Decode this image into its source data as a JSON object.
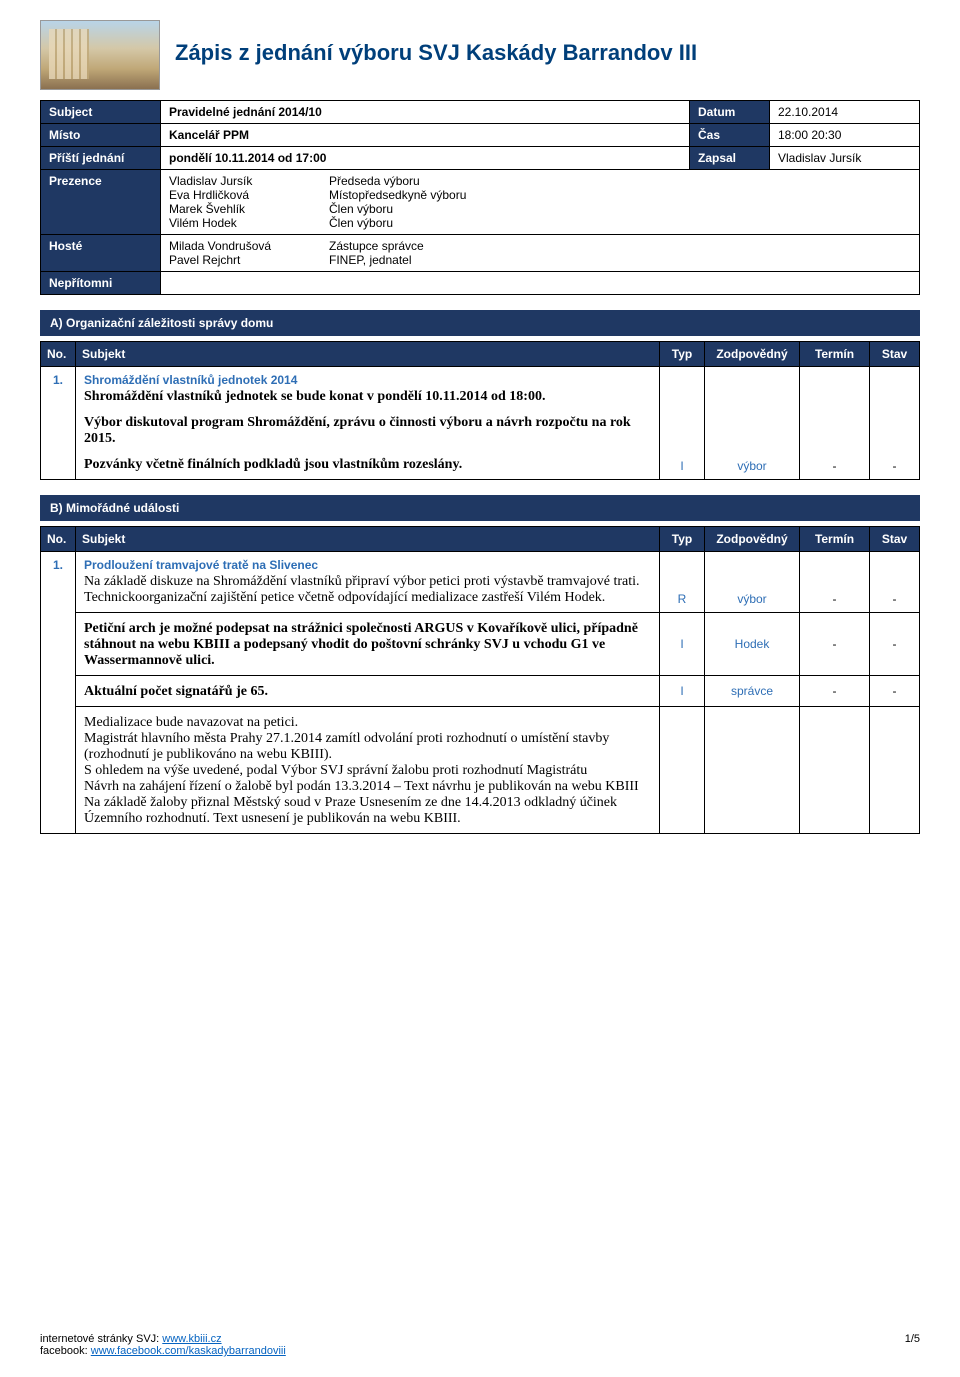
{
  "document": {
    "title": "Zápis z jednání výboru SVJ Kaskády Barrandov III",
    "title_color": "#003f7a",
    "header_bg": "#1f3863",
    "link_color": "#0563c1",
    "accent_color": "#2e6eb5"
  },
  "meta": {
    "rows": [
      {
        "label1": "Subject",
        "val1": "Pravidelné jednání 2014/10",
        "label2": "Datum",
        "val2": "22.10.2014"
      },
      {
        "label1": "Místo",
        "val1": "Kancelář PPM",
        "label2": "Čas",
        "val2": "18:00 20:30"
      },
      {
        "label1": "Příští jednání",
        "val1": "pondělí 10.11.2014 od 17:00",
        "label2": "Zapsal",
        "val2": "Vladislav Jursík"
      }
    ],
    "prezence": {
      "label": "Prezence",
      "rows": [
        {
          "name": "Vladislav Jursík",
          "role": "Předseda výboru"
        },
        {
          "name": "Eva Hrdličková",
          "role": "Místopředsedkyně výboru"
        },
        {
          "name": "Marek Švehlík",
          "role": "Člen výboru"
        },
        {
          "name": "Vilém Hodek",
          "role": "Člen výboru"
        }
      ]
    },
    "hoste": {
      "label": "Hosté",
      "rows": [
        {
          "name": "Milada Vondrušová",
          "role": "Zástupce správce"
        },
        {
          "name": "Pavel Rejchrt",
          "role": "FINEP, jednatel"
        }
      ]
    },
    "nepritomni": {
      "label": "Nepřítomni",
      "value": ""
    }
  },
  "columns": {
    "no": "No.",
    "subjekt": "Subjekt",
    "typ": "Typ",
    "zodp": "Zodpovědný",
    "termin": "Termín",
    "stav": "Stav"
  },
  "sections": [
    {
      "title": "A) Organizační záležitosti správy domu",
      "items": [
        {
          "no": "1.",
          "title": "Shromáždění vlastníků jednotek 2014",
          "paragraphs": [
            {
              "text": "Shromáždění vlastníků jednotek se bude konat v pondělí 10.11.2014 od 18:00.",
              "bold": true
            },
            {
              "text": "Výbor diskutoval program Shromáždění, zprávu o činnosti výboru a návrh rozpočtu na rok 2015.",
              "bold": true
            },
            {
              "text": "Pozvánky včetně finálních podkladů jsou vlastníkům rozeslány.",
              "bold": true
            }
          ],
          "rows": [
            {
              "typ": "I",
              "zodp": "výbor",
              "termin": "-",
              "stav": "-"
            }
          ]
        }
      ]
    },
    {
      "title": "B) Mimořádné události",
      "items": [
        {
          "no": "1.",
          "title": "Prodloužení tramvajové tratě na Slivenec",
          "paragraphs": [
            {
              "text": "Na základě diskuze na Shromáždění vlastníků připraví výbor petici proti výstavbě tramvajové trati.\nTechnickoorganizační zajištění petice včetně odpovídající medializace zastřeší Vilém Hodek.",
              "bold": false
            }
          ],
          "rows": [
            {
              "typ": "R",
              "zodp": "výbor",
              "termin": "-",
              "stav": "-"
            }
          ],
          "subblocks": [
            {
              "paragraphs": [
                {
                  "text": "Petiční arch je možné podepsat na strážnici společnosti ARGUS v Kovaříkově ulici, případně stáhnout na webu KBIII a podepsaný vhodit do poštovní schránky SVJ u vchodu G1 ve Wassermannově ulici.",
                  "bold": true
                }
              ],
              "row": {
                "typ": "I",
                "zodp": "Hodek",
                "termin": "-",
                "stav": "-"
              }
            },
            {
              "paragraphs": [
                {
                  "text": "Aktuální počet signatářů je 65.",
                  "bold": true
                }
              ],
              "row": {
                "typ": "I",
                "zodp": "správce",
                "termin": "-",
                "stav": "-"
              }
            },
            {
              "paragraphs": [
                {
                  "text": "Medializace bude navazovat na petici.\nMagistrát hlavního města Prahy 27.1.2014 zamítl odvolání proti rozhodnutí o umístění stavby (rozhodnutí je publikováno na webu KBIII).\nS ohledem na výše uvedené, podal Výbor SVJ správní žalobu proti rozhodnutí Magistrátu\nNávrh na zahájení řízení o žalobě byl podán 13.3.2014 – Text návrhu je publikován na webu KBIII\nNa základě žaloby přiznal Městský soud v Praze Usnesením ze dne 14.4.2013 odkladný účinek Územního rozhodnutí. Text usnesení je publikován na webu KBIII.",
                  "bold": false
                }
              ],
              "row": null
            }
          ]
        }
      ]
    }
  ],
  "footer": {
    "line1_prefix": "internetové stránky SVJ: ",
    "line1_link": "www.kbiii.cz",
    "line2_prefix": "facebook: ",
    "line2_link": "www.facebook.com/kaskadybarrandoviii",
    "page": "1/5"
  }
}
